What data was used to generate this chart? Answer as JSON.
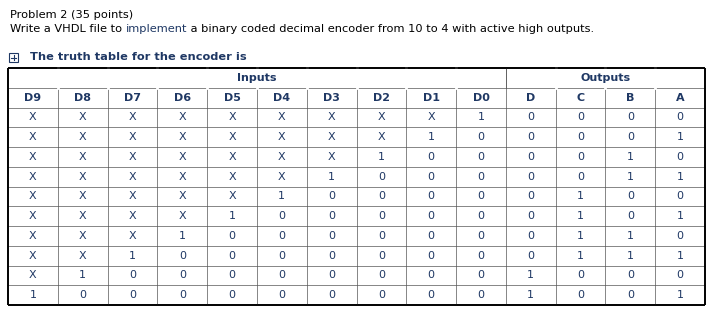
{
  "title_line1": "Problem 2 (35 points)",
  "part1": "Write a VHDL file to ",
  "part2": "implement",
  "part3": " a binary coded decimal encoder from 10 to 4 with active high outputs.",
  "section_text": "  The truth table for the encoder is",
  "inputs_label": "Inputs",
  "outputs_label": "Outputs",
  "col_headers": [
    "D9",
    "D8",
    "D7",
    "D6",
    "D5",
    "D4",
    "D3",
    "D2",
    "D1",
    "D0",
    "D",
    "C",
    "B",
    "A"
  ],
  "rows": [
    [
      "X",
      "X",
      "X",
      "X",
      "X",
      "X",
      "X",
      "X",
      "X",
      "1",
      "0",
      "0",
      "0",
      "0"
    ],
    [
      "X",
      "X",
      "X",
      "X",
      "X",
      "X",
      "X",
      "X",
      "1",
      "0",
      "0",
      "0",
      "0",
      "1"
    ],
    [
      "X",
      "X",
      "X",
      "X",
      "X",
      "X",
      "X",
      "1",
      "0",
      "0",
      "0",
      "0",
      "1",
      "0"
    ],
    [
      "X",
      "X",
      "X",
      "X",
      "X",
      "X",
      "1",
      "0",
      "0",
      "0",
      "0",
      "0",
      "1",
      "1"
    ],
    [
      "X",
      "X",
      "X",
      "X",
      "X",
      "1",
      "0",
      "0",
      "0",
      "0",
      "0",
      "1",
      "0",
      "0"
    ],
    [
      "X",
      "X",
      "X",
      "X",
      "1",
      "0",
      "0",
      "0",
      "0",
      "0",
      "0",
      "1",
      "0",
      "1"
    ],
    [
      "X",
      "X",
      "X",
      "1",
      "0",
      "0",
      "0",
      "0",
      "0",
      "0",
      "0",
      "1",
      "1",
      "0"
    ],
    [
      "X",
      "X",
      "1",
      "0",
      "0",
      "0",
      "0",
      "0",
      "0",
      "0",
      "0",
      "1",
      "1",
      "1"
    ],
    [
      "X",
      "1",
      "0",
      "0",
      "0",
      "0",
      "0",
      "0",
      "0",
      "0",
      "1",
      "0",
      "0",
      "0"
    ],
    [
      "1",
      "0",
      "0",
      "0",
      "0",
      "0",
      "0",
      "0",
      "0",
      "0",
      "1",
      "0",
      "0",
      "1"
    ]
  ],
  "bg_color": "#ffffff",
  "dark_blue": "#1f3864",
  "black": "#000000",
  "gray": "#555555",
  "n_cols": 14,
  "n_input_cols": 10,
  "n_data_rows": 10,
  "fig_w": 7.13,
  "fig_h": 3.13,
  "dpi": 100
}
